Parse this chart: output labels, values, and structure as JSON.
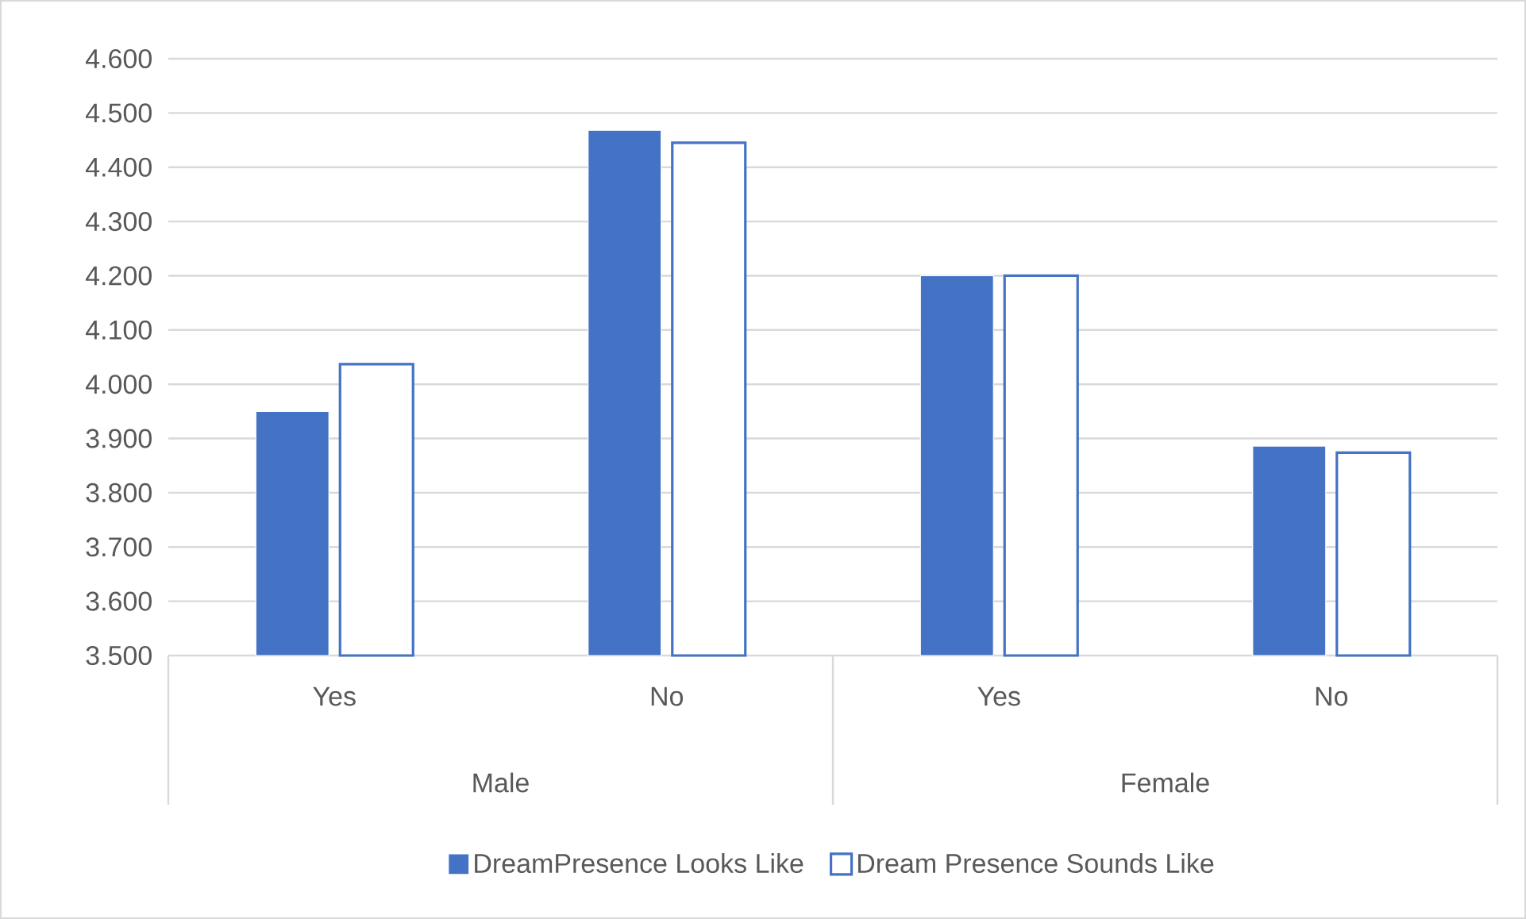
{
  "chart_data": {
    "type": "bar",
    "categories": [
      "Yes",
      "No",
      "Yes",
      "No"
    ],
    "annotations": [
      "Male",
      "Female"
    ],
    "series": [
      {
        "name": "DreamPresence Looks Like",
        "color": "#4472c4",
        "values": [
          3.95,
          4.468,
          4.2,
          3.886
        ]
      },
      {
        "name": "Dream Presence Sounds Like",
        "color": "#4472c4",
        "values": [
          4.037,
          4.445,
          4.2,
          3.874
        ]
      }
    ],
    "ylim": [
      3.5,
      4.6
    ],
    "yticks": [
      {
        "value": 3.5,
        "label": "3.500"
      },
      {
        "value": 3.6,
        "label": "3.600"
      },
      {
        "value": 3.7,
        "label": "3.700"
      },
      {
        "value": 3.8,
        "label": "3.800"
      },
      {
        "value": 3.9,
        "label": "3.900"
      },
      {
        "value": 4.0,
        "label": "4.000"
      },
      {
        "value": 4.1,
        "label": "4.100"
      },
      {
        "value": 4.2,
        "label": "4.200"
      },
      {
        "value": 4.3,
        "label": "4.300"
      },
      {
        "value": 4.4,
        "label": "4.400"
      },
      {
        "value": 4.5,
        "label": "4.500"
      },
      {
        "value": 4.6,
        "label": "4.600"
      }
    ],
    "grid": "y",
    "legend": "bottom"
  }
}
